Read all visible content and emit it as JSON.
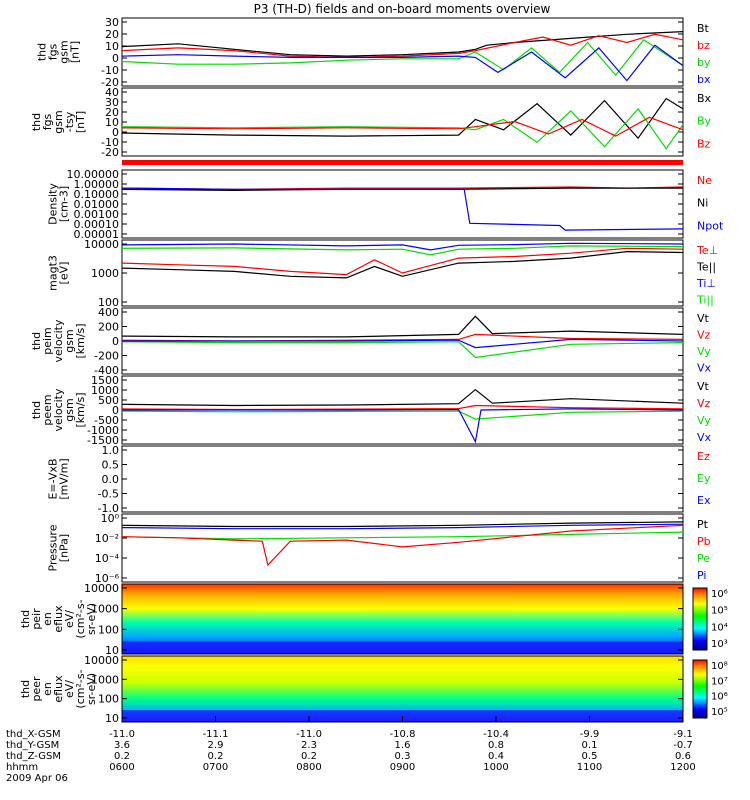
{
  "title": "P3 (TH-D) fields and on-board moments overview",
  "colors": {
    "black": "#000000",
    "red": "#ff0000",
    "green": "#00dd00",
    "blue": "#0000ff",
    "axis": "#000000"
  },
  "chart_data": [
    {
      "type": "line",
      "ylabel": [
        "thd",
        "fgs",
        "gsm",
        "[nT]"
      ],
      "yticks": [
        "30",
        "20",
        "10",
        "0",
        "-10",
        "-20"
      ],
      "ylim": [
        -20,
        30
      ],
      "legend": [
        {
          "label": "Bt",
          "color": "black"
        },
        {
          "label": "bz",
          "color": "red"
        },
        {
          "label": "by",
          "color": "green"
        },
        {
          "label": "bx",
          "color": "blue"
        }
      ],
      "series": [
        {
          "name": "Bt",
          "x": [
            0,
            0.1,
            0.2,
            0.3,
            0.4,
            0.5,
            0.6,
            0.63,
            0.65,
            0.7,
            0.8,
            0.9,
            1.0
          ],
          "y": [
            9,
            11,
            7,
            3,
            2,
            3,
            5,
            7,
            10,
            12,
            15,
            18,
            20
          ]
        },
        {
          "name": "bz",
          "x": [
            0,
            0.1,
            0.2,
            0.3,
            0.4,
            0.5,
            0.6,
            0.63,
            0.7,
            0.75,
            0.8,
            0.85,
            0.9,
            0.95,
            1.0
          ],
          "y": [
            6,
            8,
            6,
            2,
            1,
            2,
            4,
            6,
            12,
            16,
            10,
            17,
            12,
            18,
            14
          ]
        },
        {
          "name": "by",
          "x": [
            0,
            0.1,
            0.2,
            0.3,
            0.4,
            0.5,
            0.6,
            0.63,
            0.68,
            0.73,
            0.78,
            0.83,
            0.88,
            0.93,
            1.0
          ],
          "y": [
            -2,
            -4,
            -4,
            -3,
            -1,
            0,
            0,
            5,
            -8,
            8,
            -10,
            12,
            -12,
            14,
            -5
          ]
        },
        {
          "name": "bx",
          "x": [
            0,
            0.1,
            0.2,
            0.3,
            0.4,
            0.5,
            0.6,
            0.63,
            0.67,
            0.73,
            0.79,
            0.85,
            0.9,
            0.95,
            1.0
          ],
          "y": [
            2,
            3,
            2,
            1,
            1,
            1,
            2,
            1,
            -10,
            5,
            -14,
            8,
            -16,
            10,
            -5
          ]
        }
      ]
    },
    {
      "type": "line",
      "ylabel": [
        "thd",
        "fgs",
        "gsm",
        "-tsy",
        "[nT]"
      ],
      "yticks": [
        "40",
        "30",
        "20",
        "10",
        "0",
        "-10",
        "-20"
      ],
      "ylim": [
        -25,
        40
      ],
      "legend": [
        {
          "label": "Bx",
          "color": "black"
        },
        {
          "label": "By",
          "color": "green"
        },
        {
          "label": "Bz",
          "color": "red"
        }
      ],
      "series": [
        {
          "name": "Bx",
          "x": [
            0,
            0.2,
            0.4,
            0.6,
            0.63,
            0.68,
            0.74,
            0.8,
            0.86,
            0.92,
            0.97,
            1.0
          ],
          "y": [
            -3,
            -5,
            -6,
            -5,
            10,
            0,
            25,
            -5,
            28,
            -8,
            30,
            20
          ]
        },
        {
          "name": "By",
          "x": [
            0,
            0.2,
            0.4,
            0.6,
            0.63,
            0.68,
            0.74,
            0.8,
            0.86,
            0.92,
            0.97,
            1.0
          ],
          "y": [
            3,
            2,
            3,
            2,
            0,
            10,
            -12,
            18,
            -16,
            20,
            -18,
            5
          ]
        },
        {
          "name": "Bz",
          "x": [
            0,
            0.2,
            0.4,
            0.6,
            0.63,
            0.7,
            0.76,
            0.82,
            0.88,
            0.94,
            1.0
          ],
          "y": [
            2,
            1,
            2,
            1,
            3,
            8,
            -4,
            10,
            -6,
            12,
            0
          ]
        }
      ]
    },
    {
      "type": "line",
      "ylabel": [
        "Density",
        "[cm-3]"
      ],
      "yticks": [
        "10.00000",
        "1.00000",
        "0.10000",
        "0.01000",
        "0.00100",
        "0.00010",
        "0.00001"
      ],
      "ylim": [
        -5,
        1
      ],
      "scale": "log",
      "legend": [
        {
          "label": "Ne",
          "color": "red"
        },
        {
          "label": "Ni",
          "color": "black"
        },
        {
          "label": "Npot",
          "color": "blue"
        }
      ],
      "series": [
        {
          "name": "Ne",
          "x": [
            0,
            0.2,
            0.4,
            0.6,
            0.8,
            0.9,
            1.0
          ],
          "y": [
            -0.6,
            -0.7,
            -0.6,
            -0.6,
            -0.5,
            -0.6,
            -0.5
          ]
        },
        {
          "name": "Ni",
          "x": [
            0,
            0.2,
            0.4,
            0.6,
            0.8,
            0.9,
            1.0
          ],
          "y": [
            -0.7,
            -0.8,
            -0.7,
            -0.7,
            -0.6,
            -0.6,
            -0.6
          ]
        },
        {
          "name": "Npot",
          "x": [
            0,
            0.2,
            0.4,
            0.61,
            0.62,
            0.78,
            0.79,
            1.0
          ],
          "y": [
            -0.6,
            -0.7,
            -0.7,
            -0.7,
            -3.7,
            -3.9,
            -4.3,
            -4.2
          ]
        }
      ]
    },
    {
      "type": "line",
      "ylabel": [
        "magt3",
        "[eV]"
      ],
      "yticks": [
        "10000",
        "1000",
        "100"
      ],
      "ylim": [
        2,
        4
      ],
      "scale": "log",
      "legend": [
        {
          "label": "Te⊥",
          "color": "red"
        },
        {
          "label": "Te||",
          "color": "black"
        },
        {
          "label": "Ti⊥",
          "color": "blue"
        },
        {
          "label": "Ti||",
          "color": "green"
        }
      ],
      "series": [
        {
          "name": "Ti⊥",
          "x": [
            0,
            0.2,
            0.4,
            0.5,
            0.55,
            0.6,
            0.7,
            0.8,
            1.0
          ],
          "y": [
            3.85,
            3.88,
            3.82,
            3.85,
            3.7,
            3.84,
            3.86,
            3.9,
            3.88
          ]
        },
        {
          "name": "Ti||",
          "x": [
            0,
            0.2,
            0.4,
            0.5,
            0.55,
            0.6,
            0.7,
            0.8,
            1.0
          ],
          "y": [
            3.75,
            3.76,
            3.7,
            3.72,
            3.55,
            3.72,
            3.75,
            3.82,
            3.8
          ]
        },
        {
          "name": "Te⊥",
          "x": [
            0,
            0.1,
            0.2,
            0.3,
            0.4,
            0.45,
            0.5,
            0.6,
            0.7,
            0.8,
            0.9,
            1.0
          ],
          "y": [
            3.3,
            3.25,
            3.2,
            3.05,
            2.95,
            3.4,
            3.0,
            3.45,
            3.5,
            3.6,
            3.75,
            3.72
          ]
        },
        {
          "name": "Te||",
          "x": [
            0,
            0.1,
            0.2,
            0.3,
            0.4,
            0.45,
            0.5,
            0.6,
            0.7,
            0.8,
            0.9,
            1.0
          ],
          "y": [
            3.15,
            3.1,
            3.05,
            2.9,
            2.85,
            3.2,
            2.9,
            3.3,
            3.35,
            3.45,
            3.65,
            3.62
          ]
        }
      ]
    },
    {
      "type": "line",
      "ylabel": [
        "thd",
        "peim",
        "velocity",
        "gsm",
        "[km/s]"
      ],
      "yticks": [
        "400",
        "200",
        "0",
        "-200",
        "-400"
      ],
      "ylim": [
        -400,
        400
      ],
      "legend": [
        {
          "label": "Vt",
          "color": "black"
        },
        {
          "label": "Vz",
          "color": "red"
        },
        {
          "label": "Vy",
          "color": "green"
        },
        {
          "label": "Vx",
          "color": "blue"
        }
      ],
      "series": [
        {
          "name": "Vt",
          "x": [
            0,
            0.2,
            0.4,
            0.6,
            0.63,
            0.66,
            0.8,
            1.0
          ],
          "y": [
            60,
            50,
            50,
            80,
            300,
            90,
            120,
            80
          ]
        },
        {
          "name": "Vz",
          "x": [
            0,
            0.2,
            0.4,
            0.6,
            0.63,
            0.8,
            1.0
          ],
          "y": [
            10,
            0,
            10,
            20,
            80,
            30,
            20
          ]
        },
        {
          "name": "Vy",
          "x": [
            0,
            0.2,
            0.4,
            0.6,
            0.63,
            0.8,
            1.0
          ],
          "y": [
            -10,
            -20,
            -20,
            -10,
            -200,
            -40,
            -20
          ]
        },
        {
          "name": "Vx",
          "x": [
            0,
            0.2,
            0.4,
            0.6,
            0.63,
            0.8,
            1.0
          ],
          "y": [
            0,
            0,
            0,
            10,
            -80,
            20,
            0
          ]
        }
      ]
    },
    {
      "type": "line",
      "ylabel": [
        "thd",
        "peem",
        "velocity",
        "gsm",
        "[km/s]"
      ],
      "yticks": [
        "1500",
        "1000",
        "500",
        "0",
        "-500",
        "-1000",
        "-1500"
      ],
      "ylim": [
        -1500,
        1500
      ],
      "legend": [
        {
          "label": "Vt",
          "color": "black"
        },
        {
          "label": "Vz",
          "color": "red"
        },
        {
          "label": "Vy",
          "color": "green"
        },
        {
          "label": "Vx",
          "color": "blue"
        }
      ],
      "series": [
        {
          "name": "Vt",
          "x": [
            0,
            0.2,
            0.4,
            0.6,
            0.63,
            0.66,
            0.8,
            1.0
          ],
          "y": [
            250,
            200,
            220,
            280,
            900,
            300,
            500,
            300
          ]
        },
        {
          "name": "Vz",
          "x": [
            0,
            0.2,
            0.4,
            0.6,
            0.63,
            0.8,
            1.0
          ],
          "y": [
            50,
            20,
            40,
            60,
            200,
            100,
            50
          ]
        },
        {
          "name": "Vy",
          "x": [
            0,
            0.2,
            0.4,
            0.6,
            0.63,
            0.8,
            1.0
          ],
          "y": [
            -50,
            -80,
            -60,
            -50,
            -400,
            -100,
            -50
          ]
        },
        {
          "name": "Vx",
          "x": [
            0,
            0.2,
            0.4,
            0.6,
            0.63,
            0.64,
            0.8,
            1.0
          ],
          "y": [
            0,
            0,
            0,
            20,
            -1400,
            0,
            50,
            0
          ]
        }
      ]
    },
    {
      "type": "line",
      "ylabel": [
        "E=-VxB",
        "[mV/m]"
      ],
      "yticks": [
        "1.0",
        "0.5",
        "0.0",
        "-0.5",
        "-1.0"
      ],
      "ylim": [
        -1,
        1
      ],
      "legend": [
        {
          "label": "Ez",
          "color": "red"
        },
        {
          "label": "Ey",
          "color": "green"
        },
        {
          "label": "Ex",
          "color": "blue"
        }
      ],
      "series": []
    },
    {
      "type": "line",
      "ylabel": [
        "Pressure",
        "[nPa]"
      ],
      "yticks": [
        "10⁰",
        "10⁻²",
        "10⁻⁴",
        "10⁻⁶"
      ],
      "ylim": [
        -6,
        0
      ],
      "scale": "log",
      "legend": [
        {
          "label": "Pt",
          "color": "black"
        },
        {
          "label": "Pb",
          "color": "red"
        },
        {
          "label": "Pe",
          "color": "green"
        },
        {
          "label": "Pi",
          "color": "blue"
        }
      ],
      "series": [
        {
          "name": "Pt",
          "x": [
            0,
            0.2,
            0.4,
            0.6,
            0.8,
            1.0
          ],
          "y": [
            -1.0,
            -1.1,
            -1.1,
            -1.0,
            -0.8,
            -0.7
          ]
        },
        {
          "name": "Pi",
          "x": [
            0,
            0.2,
            0.4,
            0.6,
            0.8,
            1.0
          ],
          "y": [
            -1.2,
            -1.3,
            -1.3,
            -1.2,
            -1.0,
            -0.9
          ]
        },
        {
          "name": "Pe",
          "x": [
            0,
            0.2,
            0.4,
            0.6,
            0.8,
            1.0
          ],
          "y": [
            -2.0,
            -2.2,
            -2.1,
            -2.0,
            -1.8,
            -1.6
          ]
        },
        {
          "name": "Pb",
          "x": [
            0,
            0.1,
            0.2,
            0.25,
            0.26,
            0.3,
            0.4,
            0.5,
            0.6,
            0.8,
            1.0
          ],
          "y": [
            -2.0,
            -2.1,
            -2.3,
            -2.4,
            -4.5,
            -2.4,
            -2.3,
            -2.9,
            -2.5,
            -1.5,
            -1.0
          ]
        }
      ]
    },
    {
      "type": "heatmap",
      "ylabel": [
        "thd",
        "peir",
        "en",
        "eflux",
        "eV/",
        "(cm²-s-",
        "sr-eV)"
      ],
      "yticks": [
        "10000",
        "1000",
        "100",
        "10"
      ],
      "colorbar": [
        "10⁶",
        "10⁵",
        "10⁴",
        "10³"
      ]
    },
    {
      "type": "heatmap",
      "ylabel": [
        "thd",
        "peer",
        "en",
        "eflux",
        "eV/",
        "(cm²-s-",
        "sr-eV)"
      ],
      "yticks": [
        "10000",
        "1000",
        "100",
        "10"
      ],
      "colorbar": [
        "10⁸",
        "10⁷",
        "10⁶",
        "10⁵"
      ]
    }
  ],
  "x_axis": {
    "rows": [
      {
        "label": "thd_X-GSM",
        "values": [
          "-11.0",
          "-11.1",
          "-11.0",
          "-10.8",
          "-10.4",
          "-9.9",
          "-9.1"
        ]
      },
      {
        "label": "thd_Y-GSM",
        "values": [
          "3.6",
          "2.9",
          "2.3",
          "1.6",
          "0.8",
          "0.1",
          "-0.7"
        ]
      },
      {
        "label": "thd_Z-GSM",
        "values": [
          "0.2",
          "0.2",
          "0.2",
          "0.3",
          "0.4",
          "0.5",
          "0.6"
        ]
      },
      {
        "label": "hhmm",
        "values": [
          "0600",
          "0700",
          "0800",
          "0900",
          "1000",
          "1100",
          "1200"
        ]
      }
    ],
    "date": "2009 Apr 06"
  }
}
